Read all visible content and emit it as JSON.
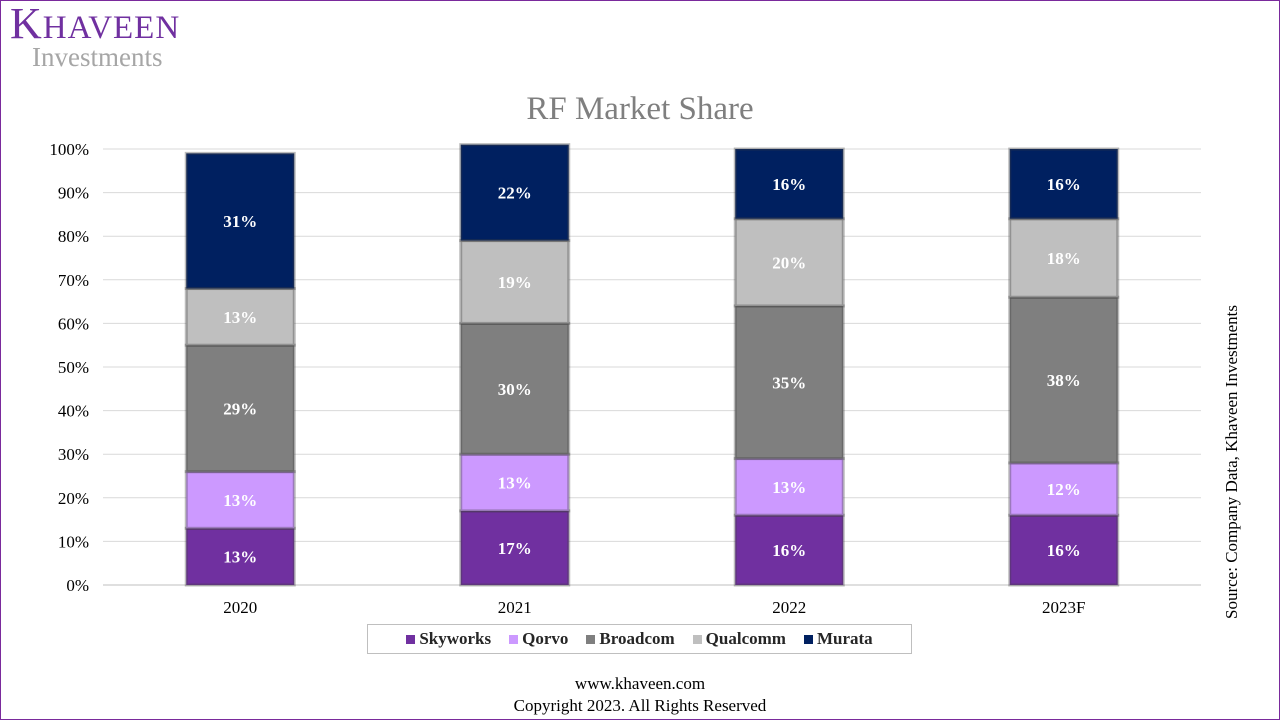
{
  "brand": {
    "name_first": "K",
    "name_rest": "HAVEEN",
    "sub": "Investments"
  },
  "colors": {
    "Skyworks": "#7030a0",
    "Qorvo": "#cc99ff",
    "Broadcom": "#7f7f7f",
    "Qualcomm": "#bfbfbf",
    "Murata": "#002060"
  },
  "source": "Source: Company Data, Khaveen Investments",
  "footer": {
    "url": "www.khaveen.com",
    "copyright": "Copyright 2023. All Rights Reserved"
  },
  "chart_data": {
    "type": "bar",
    "stacked": true,
    "title": "RF Market Share",
    "xlabel": "",
    "ylabel": "",
    "ylim": [
      0,
      100
    ],
    "y_ticks": [
      "0%",
      "10%",
      "20%",
      "30%",
      "40%",
      "50%",
      "60%",
      "70%",
      "80%",
      "90%",
      "100%"
    ],
    "categories": [
      "2020",
      "2021",
      "2022",
      "2023F"
    ],
    "series": [
      {
        "name": "Skyworks",
        "values": [
          13,
          17,
          16,
          16
        ],
        "labels": [
          "13%",
          "17%",
          "16%",
          "16%"
        ]
      },
      {
        "name": "Qorvo",
        "values": [
          13,
          13,
          13,
          12
        ],
        "labels": [
          "13%",
          "13%",
          "13%",
          "12%"
        ]
      },
      {
        "name": "Broadcom",
        "values": [
          29,
          30,
          35,
          38
        ],
        "labels": [
          "29%",
          "30%",
          "35%",
          "38%"
        ]
      },
      {
        "name": "Qualcomm",
        "values": [
          13,
          19,
          20,
          18
        ],
        "labels": [
          "13%",
          "19%",
          "20%",
          "18%"
        ]
      },
      {
        "name": "Murata",
        "values": [
          31,
          22,
          16,
          16
        ],
        "labels": [
          "31%",
          "22%",
          "16%",
          "16%"
        ]
      }
    ],
    "legend": [
      "Skyworks",
      "Qorvo",
      "Broadcom",
      "Qualcomm",
      "Murata"
    ],
    "legend_position": "bottom",
    "grid": true
  }
}
